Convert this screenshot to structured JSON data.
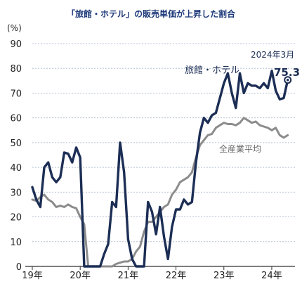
{
  "chart_data": {
    "type": "line",
    "title": "「旅館・ホテル」の販売単価が上昇した割合",
    "unit_label": "(%)",
    "ylim": [
      0,
      90
    ],
    "yticks": [
      0,
      10,
      20,
      30,
      40,
      50,
      60,
      70,
      80,
      90
    ],
    "xlim": [
      0,
      63
    ],
    "xticks": [
      {
        "label": "19年",
        "x": 0
      },
      {
        "label": "20年",
        "x": 12
      },
      {
        "label": "21年",
        "x": 24
      },
      {
        "label": "22年",
        "x": 36
      },
      {
        "label": "23年",
        "x": 48
      },
      {
        "label": "24年",
        "x": 60
      }
    ],
    "series": [
      {
        "name": "旅館・ホテル",
        "color": "#1c2e55",
        "values": [
          32,
          27,
          24,
          40,
          42,
          36,
          34,
          36,
          46,
          45.5,
          42,
          48,
          44,
          0,
          0,
          0,
          0,
          0,
          5,
          9,
          26,
          24,
          50,
          38,
          11,
          3,
          0,
          0,
          0,
          26,
          22,
          13,
          24,
          12,
          3,
          16,
          23,
          23,
          27,
          25,
          26,
          42,
          54,
          60,
          58,
          61,
          62,
          68,
          74,
          78,
          70,
          64,
          78,
          70,
          74,
          73,
          73,
          72,
          74,
          72,
          79,
          71,
          67.5,
          68,
          75.3
        ]
      },
      {
        "name": "全産業平均",
        "color": "#8c8c8c",
        "values": [
          27,
          26.5,
          28,
          29,
          27,
          26,
          24,
          24.5,
          24,
          25,
          24,
          23.5,
          20,
          17,
          0,
          0,
          0,
          0,
          0,
          0,
          0,
          1,
          1.5,
          2,
          2,
          3,
          6,
          8,
          14,
          18,
          18,
          20,
          22,
          24,
          25,
          29,
          31,
          34,
          35,
          36,
          38,
          44,
          49,
          51,
          53,
          53.5,
          56,
          57,
          58,
          57.5,
          57.5,
          57,
          58,
          60,
          59,
          58,
          58.5,
          57,
          56.5,
          56,
          55,
          56,
          53,
          52,
          53
        ]
      }
    ],
    "annotation": {
      "label": "2024年3月",
      "value": "75.3"
    }
  }
}
